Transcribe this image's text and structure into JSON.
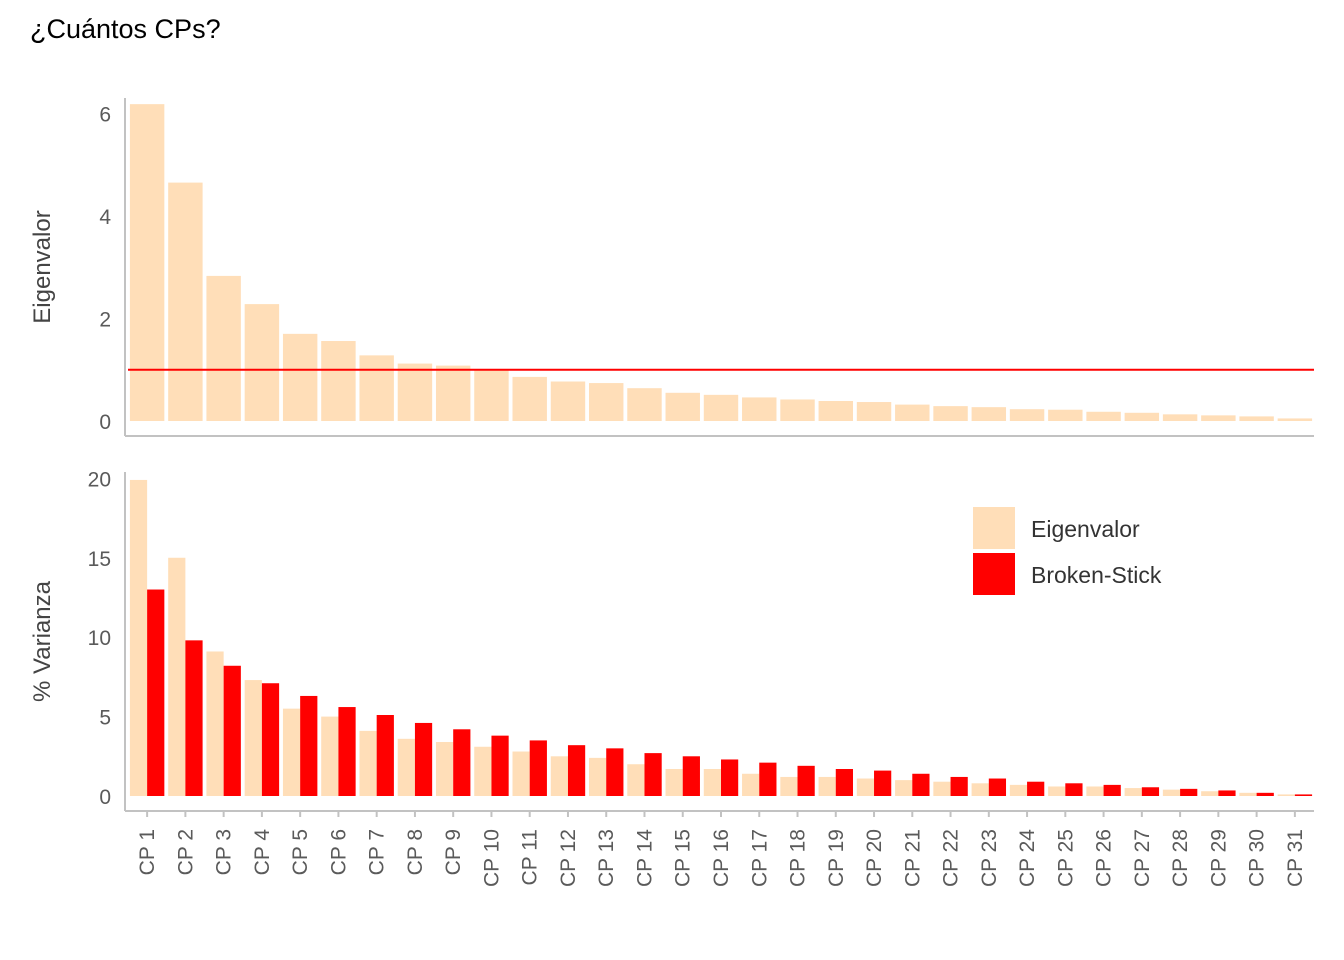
{
  "title": "¿Cuántos CPs?",
  "colors": {
    "eigen": "#FFDEB8",
    "broken": "#FF0000",
    "axis": "#C2C2C2",
    "refline": "#FF0000"
  },
  "chart_data": [
    {
      "type": "bar",
      "panel": "top",
      "ylabel": "Eigenvalor",
      "ylim": [
        0,
        6.3
      ],
      "yticks": [
        0,
        2,
        4,
        6
      ],
      "categories": [
        "CP 1",
        "CP 2",
        "CP 3",
        "CP 4",
        "CP 5",
        "CP 6",
        "CP 7",
        "CP 8",
        "CP 9",
        "CP 10",
        "CP 11",
        "CP 12",
        "CP 13",
        "CP 14",
        "CP 15",
        "CP 16",
        "CP 17",
        "CP 18",
        "CP 19",
        "CP 20",
        "CP 21",
        "CP 22",
        "CP 23",
        "CP 24",
        "CP 25",
        "CP 26",
        "CP 27",
        "CP 28",
        "CP 29",
        "CP 30",
        "CP 31"
      ],
      "series": [
        {
          "key": "eigen",
          "values": [
            6.18,
            4.65,
            2.83,
            2.28,
            1.7,
            1.56,
            1.28,
            1.12,
            1.08,
            1.0,
            0.86,
            0.77,
            0.74,
            0.64,
            0.55,
            0.51,
            0.46,
            0.42,
            0.39,
            0.37,
            0.32,
            0.29,
            0.27,
            0.23,
            0.22,
            0.18,
            0.16,
            0.13,
            0.11,
            0.09,
            0.05
          ]
        }
      ],
      "hline": 1.0,
      "grid": false
    },
    {
      "type": "bar",
      "panel": "bottom",
      "ylabel": "% Varianza",
      "ylim": [
        0,
        20.4
      ],
      "yticks": [
        0,
        5,
        10,
        15,
        20
      ],
      "categories": [
        "CP 1",
        "CP 2",
        "CP 3",
        "CP 4",
        "CP 5",
        "CP 6",
        "CP 7",
        "CP 8",
        "CP 9",
        "CP 10",
        "CP 11",
        "CP 12",
        "CP 13",
        "CP 14",
        "CP 15",
        "CP 16",
        "CP 17",
        "CP 18",
        "CP 19",
        "CP 20",
        "CP 21",
        "CP 22",
        "CP 23",
        "CP 24",
        "CP 25",
        "CP 26",
        "CP 27",
        "CP 28",
        "CP 29",
        "CP 30",
        "CP 31"
      ],
      "series": [
        {
          "name": "Eigenvalor",
          "key": "eigen",
          "values": [
            19.9,
            15.0,
            9.1,
            7.3,
            5.5,
            5.0,
            4.1,
            3.6,
            3.4,
            3.1,
            2.8,
            2.5,
            2.4,
            2.0,
            1.7,
            1.7,
            1.4,
            1.2,
            1.2,
            1.1,
            1.0,
            0.9,
            0.8,
            0.7,
            0.6,
            0.6,
            0.5,
            0.4,
            0.3,
            0.2,
            0.1
          ]
        },
        {
          "name": "Broken-Stick",
          "key": "broken",
          "values": [
            13.0,
            9.8,
            8.2,
            7.1,
            6.3,
            5.6,
            5.1,
            4.6,
            4.2,
            3.8,
            3.5,
            3.2,
            3.0,
            2.7,
            2.5,
            2.3,
            2.1,
            1.9,
            1.7,
            1.6,
            1.4,
            1.2,
            1.1,
            0.9,
            0.8,
            0.7,
            0.55,
            0.45,
            0.35,
            0.2,
            0.1
          ]
        }
      ],
      "legend_position": "top-right",
      "grid": false
    }
  ]
}
